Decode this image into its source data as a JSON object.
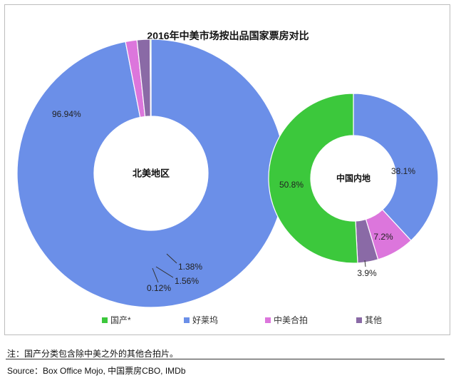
{
  "chart_data": [
    {
      "type": "donut",
      "center_label": "北美地区",
      "slices": [
        {
          "name": "好莱坞",
          "value": 96.94,
          "label": "96.94%",
          "color": "#6b8fe8"
        },
        {
          "name": "中美合拍",
          "value": 1.38,
          "label": "1.38%",
          "color": "#dc76dc"
        },
        {
          "name": "其他",
          "value": 1.56,
          "label": "1.56%",
          "color": "#8a6aa6"
        },
        {
          "name": "国产*",
          "value": 0.12,
          "label": "0.12%",
          "color": "#3cc83c"
        }
      ]
    },
    {
      "type": "donut",
      "center_label": "中国内地",
      "slices": [
        {
          "name": "好莱坞",
          "value": 38.1,
          "label": "38.1%",
          "color": "#6b8fe8"
        },
        {
          "name": "中美合拍",
          "value": 7.2,
          "label": "7.2%",
          "color": "#dc76dc"
        },
        {
          "name": "其他",
          "value": 3.9,
          "label": "3.9%",
          "color": "#8a6aa6"
        },
        {
          "name": "国产*",
          "value": 50.8,
          "label": "50.8%",
          "color": "#3cc83c"
        }
      ]
    }
  ],
  "title": "2016年中美市场按出品国家票房对比",
  "legend": [
    {
      "name": "国产*",
      "color": "#3cc83c"
    },
    {
      "name": "好莱坞",
      "color": "#6b8fe8"
    },
    {
      "name": "中美合拍",
      "color": "#dc76dc"
    },
    {
      "name": "其他",
      "color": "#8a6aa6"
    }
  ],
  "legend_placement": "bottom",
  "note": "注：国产分类包含除中美之外的其他合拍片。",
  "source": "Source：Box Office Mojo, 中国票房CBO, IMDb"
}
